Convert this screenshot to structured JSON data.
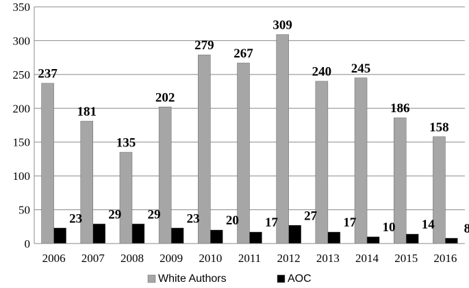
{
  "chart_data": {
    "type": "bar",
    "categories": [
      "2006",
      "2007",
      "2008",
      "2009",
      "2010",
      "2011",
      "2012",
      "2013",
      "2014",
      "2015",
      "2016"
    ],
    "series": [
      {
        "name": "White Authors",
        "values": [
          237,
          181,
          135,
          202,
          279,
          267,
          309,
          240,
          245,
          186,
          158
        ],
        "color": "#a6a6a6"
      },
      {
        "name": "AOC",
        "values": [
          23,
          29,
          29,
          23,
          20,
          17,
          27,
          17,
          10,
          14,
          8
        ],
        "color": "#000000"
      }
    ],
    "y_ticks": [
      "0",
      "50",
      "100",
      "150",
      "200",
      "250",
      "300",
      "350"
    ],
    "ylim": [
      0,
      350
    ],
    "grid": true,
    "gridline_color": "#888888",
    "legend_position": "bottom"
  }
}
